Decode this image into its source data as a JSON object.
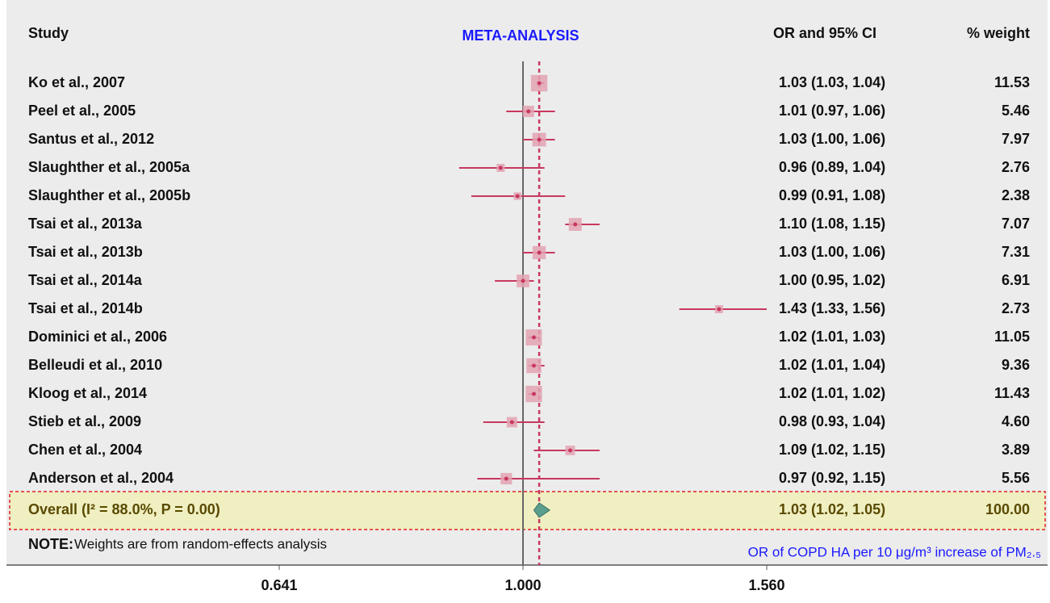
{
  "chart_data": {
    "type": "forest",
    "title": "META-ANALYSIS",
    "headers": {
      "study": "Study",
      "ci": "OR and 95% CI",
      "weight": "% weight"
    },
    "categories": [
      "Ko et al., 2007",
      "Peel et al., 2005",
      "Santus et al., 2012",
      "Slaughther et al., 2005a",
      "Slaughther et al., 2005b",
      "Tsai et al., 2013a",
      "Tsai et al., 2013b",
      "Tsai et al., 2014a",
      "Tsai et al., 2014b",
      "Dominici et al., 2006",
      "Belleudi et al., 2010",
      "Kloog et al., 2014",
      "Stieb et al., 2009",
      "Chen et al., 2004",
      "Anderson et al., 2004"
    ],
    "values": [
      1.03,
      1.01,
      1.03,
      0.96,
      0.99,
      1.1,
      1.03,
      1.0,
      1.43,
      1.02,
      1.02,
      1.02,
      0.98,
      1.09,
      0.97
    ],
    "lower": [
      1.03,
      0.97,
      1.0,
      0.89,
      0.91,
      1.08,
      1.0,
      0.95,
      1.33,
      1.01,
      1.01,
      1.01,
      0.93,
      1.02,
      0.92
    ],
    "upper": [
      1.04,
      1.06,
      1.06,
      1.04,
      1.08,
      1.15,
      1.06,
      1.02,
      1.56,
      1.03,
      1.04,
      1.02,
      1.04,
      1.15,
      1.15
    ],
    "value_labels": [
      "1.03 (1.03, 1.04)",
      "1.01 (0.97, 1.06)",
      "1.03 (1.00, 1.06)",
      "0.96 (0.89, 1.04)",
      "0.99 (0.91, 1.08)",
      "1.10 (1.08, 1.15)",
      "1.03 (1.00, 1.06)",
      "1.00 (0.95, 1.02)",
      "1.43 (1.33, 1.56)",
      "1.02 (1.01, 1.03)",
      "1.02 (1.01, 1.04)",
      "1.02 (1.01, 1.02)",
      "0.98 (0.93, 1.04)",
      "1.09 (1.02, 1.15)",
      "0.97 (0.92, 1.15)"
    ],
    "weights": [
      11.53,
      5.46,
      7.97,
      2.76,
      2.38,
      7.07,
      7.31,
      6.91,
      2.73,
      11.05,
      9.36,
      11.43,
      4.6,
      3.89,
      5.56
    ],
    "weight_labels": [
      "11.53",
      "5.46",
      "7.97",
      "2.76",
      "2.38",
      "7.07",
      "7.31",
      "6.91",
      "2.73",
      "11.05",
      "9.36",
      "11.43",
      "4.60",
      "3.89",
      "5.56"
    ],
    "overall": {
      "label": "Overall (I² = 88.0%, P = 0.00)",
      "value": 1.03,
      "lower": 1.02,
      "upper": 1.05,
      "value_label": "1.03 (1.02, 1.05)",
      "weight": 100,
      "weight_label": "100.00"
    },
    "note_label": "NOTE:",
    "note": "Weights are from random-effects analysis",
    "xlabel": "OR of COPD HA per 10 μg/m³ increase of PM₂.₅",
    "ref_line": 1,
    "xscale": "log",
    "xlim": [
      0.641,
      1.56
    ],
    "xticks": [
      {
        "value": 0.641,
        "label": "0.641"
      },
      {
        "value": 1,
        "label": "1.000"
      },
      {
        "value": 1.56,
        "label": "1.560"
      }
    ],
    "color": "#c8385f",
    "box_color": "#e3a3b3",
    "diamond_color": "#5a9e8e"
  }
}
